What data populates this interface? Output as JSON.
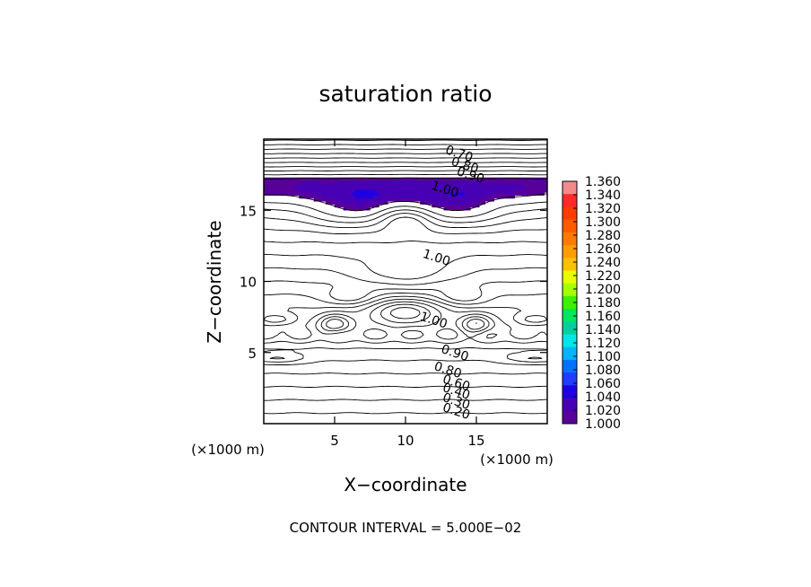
{
  "chart_data": {
    "type": "contour",
    "title": "saturation ratio",
    "xlabel": "X−coordinate",
    "ylabel": "Z−coordinate",
    "x_unit": "(×1000 m)",
    "z_unit": "(×1000 m)",
    "xlim": [
      0,
      20
    ],
    "ylim": [
      0,
      20
    ],
    "xticks": [
      5,
      10,
      15
    ],
    "yticks": [
      5,
      10,
      15
    ],
    "footer": "CONTOUR INTERVAL = 5.000E−02",
    "contour_interval": 0.05,
    "fill_threshold": 1.0,
    "contour_labels": [
      {
        "text": "0.70",
        "x": 13.8,
        "z": 19.0
      },
      {
        "text": "0.80",
        "x": 14.2,
        "z": 18.2
      },
      {
        "text": "0.90",
        "x": 14.6,
        "z": 17.5
      },
      {
        "text": "1.00",
        "x": 12.8,
        "z": 16.5
      },
      {
        "text": "1.00",
        "x": 12.2,
        "z": 11.7
      },
      {
        "text": "1.00",
        "x": 12.0,
        "z": 7.3
      },
      {
        "text": "0.90",
        "x": 13.5,
        "z": 5.0
      },
      {
        "text": "0.80",
        "x": 13.0,
        "z": 3.8
      },
      {
        "text": "0.60",
        "x": 13.6,
        "z": 2.9
      },
      {
        "text": "0.40",
        "x": 13.6,
        "z": 2.3
      },
      {
        "text": "0.30",
        "x": 13.6,
        "z": 1.6
      },
      {
        "text": "0.20",
        "x": 13.6,
        "z": 0.9
      }
    ],
    "colorbar": {
      "levels": [
        "1.360",
        "1.340",
        "1.320",
        "1.300",
        "1.280",
        "1.260",
        "1.240",
        "1.220",
        "1.200",
        "1.180",
        "1.160",
        "1.140",
        "1.120",
        "1.100",
        "1.080",
        "1.060",
        "1.040",
        "1.020",
        "1.000"
      ],
      "colors": [
        "#f38a8a",
        "#ff2b2b",
        "#ff3c00",
        "#ff5a00",
        "#ff7a00",
        "#ff9c00",
        "#ffc000",
        "#e8ff00",
        "#a6ff00",
        "#3df000",
        "#00e65c",
        "#00d0a0",
        "#00e6e6",
        "#00b4ff",
        "#0072ff",
        "#1f3cff",
        "#1e00e0",
        "#4800b4",
        "#58009a"
      ]
    }
  }
}
